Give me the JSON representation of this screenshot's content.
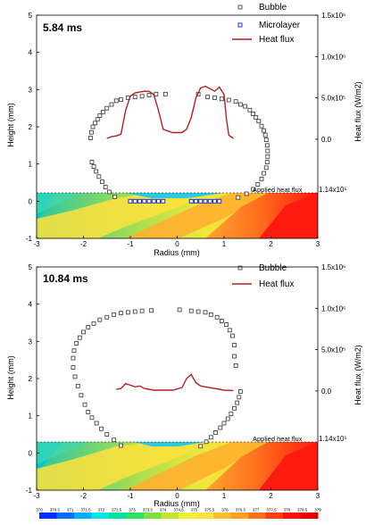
{
  "chart_data": [
    {
      "type": "scatter",
      "title": "5.84 ms",
      "xlabel": "Radius (mm)",
      "ylabel": "Height (mm)",
      "y2label": "Heat flux (W/m2)",
      "xlim": [
        -3,
        3
      ],
      "ylim": [
        -1,
        5
      ],
      "x_ticks": [
        "-3",
        "-2",
        "-1",
        "0",
        "1",
        "2",
        "3"
      ],
      "y_ticks": [
        "-1",
        "0",
        "1",
        "2",
        "3",
        "4",
        "5"
      ],
      "y2_ticks": [
        "0.0",
        "5.0x10⁵",
        "1.0x10⁶",
        "1.5x10⁶"
      ],
      "y2_lim": [
        -1200000.0,
        1500000.0
      ],
      "annotation": "Applied heat flux",
      "annotation_value": "1.14x10⁵",
      "legend": [
        "Bubble",
        "Microlayer",
        "Heat flux"
      ],
      "series": [
        {
          "name": "Bubble",
          "points": [
            [
              -1.33,
              0.12
            ],
            [
              -1.45,
              0.25
            ],
            [
              -1.53,
              0.38
            ],
            [
              -1.6,
              0.52
            ],
            [
              -1.67,
              0.66
            ],
            [
              -1.73,
              0.8
            ],
            [
              -1.78,
              0.93
            ],
            [
              -1.82,
              1.05
            ],
            [
              -1.3,
              2.7
            ],
            [
              -1.4,
              2.6
            ],
            [
              -1.5,
              2.5
            ],
            [
              -1.58,
              2.4
            ],
            [
              -1.65,
              2.3
            ],
            [
              -1.7,
              2.2
            ],
            [
              -1.75,
              2.1
            ],
            [
              -1.8,
              2.0
            ],
            [
              -1.83,
              1.85
            ],
            [
              -1.85,
              1.7
            ],
            [
              -1.2,
              2.73
            ],
            [
              -1.05,
              2.78
            ],
            [
              -0.9,
              2.8
            ],
            [
              -0.75,
              2.82
            ],
            [
              -0.6,
              2.85
            ],
            [
              -0.45,
              2.88
            ],
            [
              -0.25,
              2.88
            ],
            [
              0.45,
              2.88
            ],
            [
              0.65,
              2.8
            ],
            [
              0.8,
              2.78
            ],
            [
              0.95,
              2.75
            ],
            [
              1.1,
              2.72
            ],
            [
              1.25,
              2.68
            ],
            [
              1.35,
              2.6
            ],
            [
              1.45,
              2.55
            ],
            [
              1.55,
              2.45
            ],
            [
              1.62,
              2.35
            ],
            [
              1.68,
              2.25
            ],
            [
              1.74,
              2.15
            ],
            [
              1.8,
              2.02
            ],
            [
              1.85,
              1.9
            ],
            [
              1.88,
              1.78
            ],
            [
              1.9,
              1.65
            ],
            [
              1.92,
              1.5
            ],
            [
              1.93,
              1.35
            ],
            [
              1.93,
              1.2
            ],
            [
              1.92,
              1.05
            ],
            [
              1.9,
              0.9
            ],
            [
              1.85,
              0.75
            ],
            [
              1.8,
              0.6
            ],
            [
              1.72,
              0.45
            ],
            [
              1.62,
              0.32
            ],
            [
              1.48,
              0.2
            ],
            [
              1.3,
              0.1
            ]
          ]
        },
        {
          "name": "Microlayer",
          "points": [
            [
              -1.0,
              0.0
            ],
            [
              -0.9,
              0.0
            ],
            [
              -0.8,
              0.0
            ],
            [
              -0.7,
              0.0
            ],
            [
              -0.6,
              0.0
            ],
            [
              -0.5,
              0.0
            ],
            [
              -0.4,
              0.0
            ],
            [
              -0.3,
              0.0
            ],
            [
              0.3,
              0.0
            ],
            [
              0.4,
              0.0
            ],
            [
              0.5,
              0.0
            ],
            [
              0.6,
              0.0
            ],
            [
              0.7,
              0.0
            ],
            [
              0.8,
              0.0
            ],
            [
              0.9,
              0.0
            ]
          ]
        },
        {
          "name": "Heat flux",
          "points": [
            [
              -1.5,
              10000.0
            ],
            [
              -1.4,
              30000.0
            ],
            [
              -1.3,
              40000.0
            ],
            [
              -1.2,
              60000.0
            ],
            [
              -1.1,
              350000.0
            ],
            [
              -1.0,
              520000.0
            ],
            [
              -0.9,
              560000.0
            ],
            [
              -0.8,
              570000.0
            ],
            [
              -0.7,
              580000.0
            ],
            [
              -0.6,
              580000.0
            ],
            [
              -0.5,
              540000.0
            ],
            [
              -0.4,
              350000.0
            ],
            [
              -0.3,
              120000.0
            ],
            [
              -0.1,
              80000.0
            ],
            [
              0.1,
              80000.0
            ],
            [
              0.2,
              120000.0
            ],
            [
              0.3,
              260000.0
            ],
            [
              0.4,
              500000.0
            ],
            [
              0.5,
              620000.0
            ],
            [
              0.6,
              640000.0
            ],
            [
              0.7,
              610000.0
            ],
            [
              0.8,
              580000.0
            ],
            [
              0.9,
              630000.0
            ],
            [
              1.0,
              540000.0
            ],
            [
              1.05,
              250000.0
            ],
            [
              1.1,
              50000.0
            ],
            [
              1.2,
              10000.0
            ]
          ]
        }
      ]
    },
    {
      "type": "scatter",
      "title": "10.84 ms",
      "xlabel": "Radius (mm)",
      "ylabel": "Height (mm)",
      "y2label": "Heat flux (W/m2)",
      "xlim": [
        -3,
        3
      ],
      "ylim": [
        -1,
        5
      ],
      "x_ticks": [
        "-3",
        "-2",
        "-1",
        "0",
        "1",
        "2",
        "3"
      ],
      "y_ticks": [
        "-1",
        "0",
        "1",
        "2",
        "3",
        "4",
        "5"
      ],
      "y2_ticks": [
        "0.0",
        "5.0x10⁵",
        "1.0x10⁶",
        "1.5x10⁶"
      ],
      "y2_lim": [
        -1200000.0,
        1500000.0
      ],
      "annotation": "Applied heat flux",
      "annotation_value": "1.14x10⁵",
      "legend": [
        "Bubble",
        "Heat flux"
      ],
      "series": [
        {
          "name": "Bubble",
          "points": [
            [
              -1.2,
              0.2
            ],
            [
              -1.35,
              0.35
            ],
            [
              -1.5,
              0.5
            ],
            [
              -1.62,
              0.65
            ],
            [
              -1.72,
              0.8
            ],
            [
              -1.82,
              0.95
            ],
            [
              -1.9,
              1.1
            ],
            [
              -1.97,
              1.3
            ],
            [
              -2.05,
              1.55
            ],
            [
              -2.12,
              1.8
            ],
            [
              -2.18,
              2.05
            ],
            [
              -2.22,
              2.3
            ],
            [
              -2.22,
              2.55
            ],
            [
              -2.2,
              2.75
            ],
            [
              -2.15,
              2.95
            ],
            [
              -2.08,
              3.1
            ],
            [
              -2.0,
              3.25
            ],
            [
              -1.9,
              3.38
            ],
            [
              -1.78,
              3.48
            ],
            [
              -1.65,
              3.58
            ],
            [
              -1.5,
              3.65
            ],
            [
              -1.35,
              3.72
            ],
            [
              -1.2,
              3.76
            ],
            [
              -1.05,
              3.78
            ],
            [
              -0.9,
              3.8
            ],
            [
              -0.75,
              3.82
            ],
            [
              -0.55,
              3.83
            ],
            [
              0.05,
              3.85
            ],
            [
              0.3,
              3.82
            ],
            [
              0.45,
              3.8
            ],
            [
              0.6,
              3.78
            ],
            [
              0.72,
              3.72
            ],
            [
              0.85,
              3.65
            ],
            [
              0.95,
              3.55
            ],
            [
              1.05,
              3.45
            ],
            [
              1.12,
              3.3
            ],
            [
              1.18,
              3.15
            ],
            [
              1.22,
              2.9
            ],
            [
              1.22,
              2.6
            ],
            [
              1.25,
              2.35
            ],
            [
              1.35,
              1.65
            ],
            [
              1.32,
              1.5
            ],
            [
              1.28,
              1.35
            ],
            [
              1.22,
              1.2
            ],
            [
              1.15,
              1.05
            ],
            [
              1.08,
              0.92
            ],
            [
              1.0,
              0.8
            ],
            [
              0.92,
              0.68
            ],
            [
              0.82,
              0.55
            ],
            [
              0.72,
              0.42
            ],
            [
              0.62,
              0.3
            ],
            [
              0.5,
              0.18
            ]
          ]
        },
        {
          "name": "Heat flux",
          "points": [
            [
              -1.3,
              20000.0
            ],
            [
              -1.2,
              30000.0
            ],
            [
              -1.1,
              90000.0
            ],
            [
              -1.0,
              70000.0
            ],
            [
              -0.9,
              50000.0
            ],
            [
              -0.8,
              60000.0
            ],
            [
              -0.7,
              30000.0
            ],
            [
              -0.5,
              10000.0
            ],
            [
              -0.1,
              10000.0
            ],
            [
              0.1,
              40000.0
            ],
            [
              0.2,
              150000.0
            ],
            [
              0.3,
              200000.0
            ],
            [
              0.4,
              100000.0
            ],
            [
              0.5,
              60000.0
            ],
            [
              0.6,
              50000.0
            ],
            [
              0.7,
              40000.0
            ],
            [
              0.8,
              30000.0
            ],
            [
              0.9,
              20000.0
            ],
            [
              1.0,
              10000.0
            ],
            [
              1.2,
              5000.0
            ]
          ]
        }
      ]
    }
  ],
  "colorbar": {
    "ticks": [
      "370",
      "370.5",
      "371",
      "371.5",
      "372",
      "372.5",
      "373",
      "373.5",
      "374",
      "374.5",
      "375",
      "375.5",
      "376",
      "376.5",
      "377",
      "377.5",
      "378",
      "378.5",
      "379"
    ],
    "colors": [
      "#0030ff",
      "#0070ff",
      "#00b0ff",
      "#00e8e8",
      "#00e0a0",
      "#30e060",
      "#80e040",
      "#c0e830",
      "#f0f030",
      "#ffe040",
      "#ffc030",
      "#ffa020",
      "#ff7018",
      "#ff4010",
      "#ff1010",
      "#e80000"
    ]
  }
}
